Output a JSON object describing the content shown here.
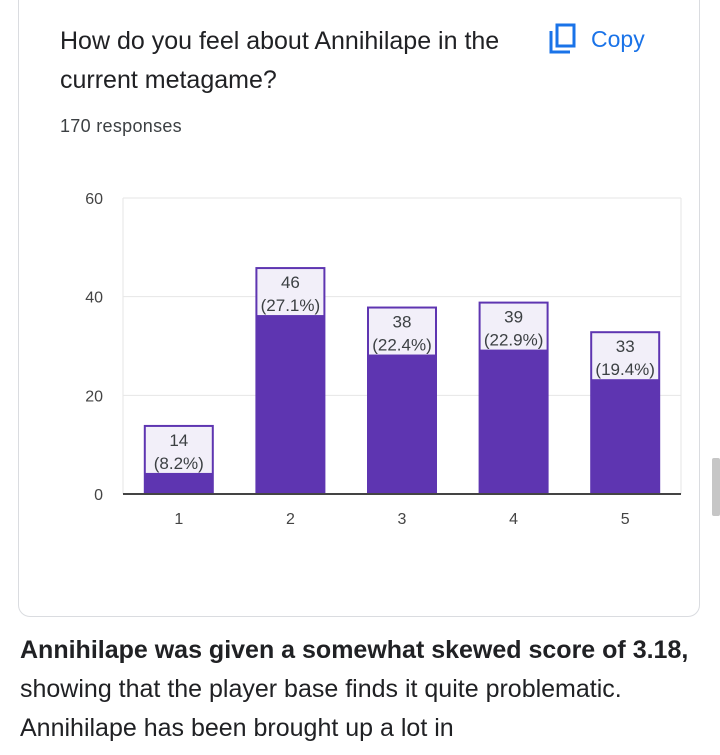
{
  "card": {
    "question": "How do you feel about Annihilape in the current metagame?",
    "copy_label": "Copy",
    "responses": "170 responses"
  },
  "chart_data": {
    "type": "bar",
    "categories": [
      "1",
      "2",
      "3",
      "4",
      "5"
    ],
    "values": [
      14,
      46,
      38,
      39,
      33
    ],
    "data_labels": [
      [
        "14",
        "(8.2%)"
      ],
      [
        "46",
        "(27.1%)"
      ],
      [
        "38",
        "(22.4%)"
      ],
      [
        "39",
        "(22.9%)"
      ],
      [
        "33",
        "(19.4%)"
      ]
    ],
    "yticks": [
      0,
      20,
      40,
      60
    ],
    "ylim": [
      0,
      60
    ],
    "grid": true,
    "bar_color": "#5e35b1",
    "title": "",
    "xlabel": "",
    "ylabel": ""
  },
  "article": {
    "bold_text": "Annihilape was given a somewhat skewed score of 3.18,",
    "rest_text": " showing that the player base finds it quite problematic. Annihilape has been brought up a lot in"
  },
  "colors": {
    "accent": "#1a73e8",
    "bar": "#5e35b1",
    "border": "#dadce0"
  }
}
